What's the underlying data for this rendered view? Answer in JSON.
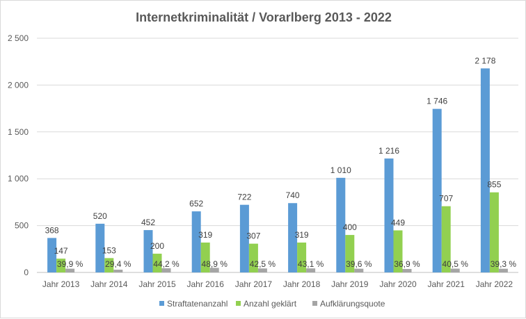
{
  "chart_data": {
    "type": "bar",
    "title": "Internetkriminalität / Vorarlberg 2013 - 2022",
    "categories": [
      "Jahr 2013",
      "Jahr 2014",
      "Jahr 2015",
      "Jahr 2016",
      "Jahr 2017",
      "Jahr 2018",
      "Jahr 2019",
      "Jahr 2020",
      "Jahr 2021",
      "Jahr 2022"
    ],
    "series": [
      {
        "name": "Straftatenanzahl",
        "color": "#5b9bd5",
        "values": [
          368,
          520,
          452,
          652,
          722,
          740,
          1010,
          1216,
          1746,
          2178
        ],
        "labels": [
          "368",
          "520",
          "452",
          "652",
          "722",
          "740",
          "1 010",
          "1 216",
          "1 746",
          "2 178"
        ]
      },
      {
        "name": "Anzahl geklärt",
        "color": "#92d050",
        "values": [
          147,
          153,
          200,
          319,
          307,
          319,
          400,
          449,
          707,
          855
        ],
        "labels": [
          "147",
          "153",
          "200",
          "319",
          "307",
          "319",
          "400",
          "449",
          "707",
          "855"
        ]
      },
      {
        "name": "Aufklärungsquote",
        "color": "#a5a5a5",
        "values": [
          39.9,
          29.4,
          44.2,
          48.9,
          42.5,
          43.1,
          39.6,
          36.9,
          40.5,
          39.3
        ],
        "labels": [
          "39,9 %",
          "29,4 %",
          "44,2 %",
          "48,9 %",
          "42,5 %",
          "43,1 %",
          "39,6 %",
          "36,9 %",
          "40,5 %",
          "39,3 %"
        ]
      }
    ],
    "ylim": [
      0,
      2500
    ],
    "yticks": [
      0,
      500,
      1000,
      1500,
      2000,
      2500
    ],
    "ytick_labels": [
      "0",
      "500",
      "1 000",
      "1 500",
      "2 000",
      "2 500"
    ],
    "xlabel": "",
    "ylabel": "",
    "grid": true,
    "legend_position": "bottom"
  }
}
